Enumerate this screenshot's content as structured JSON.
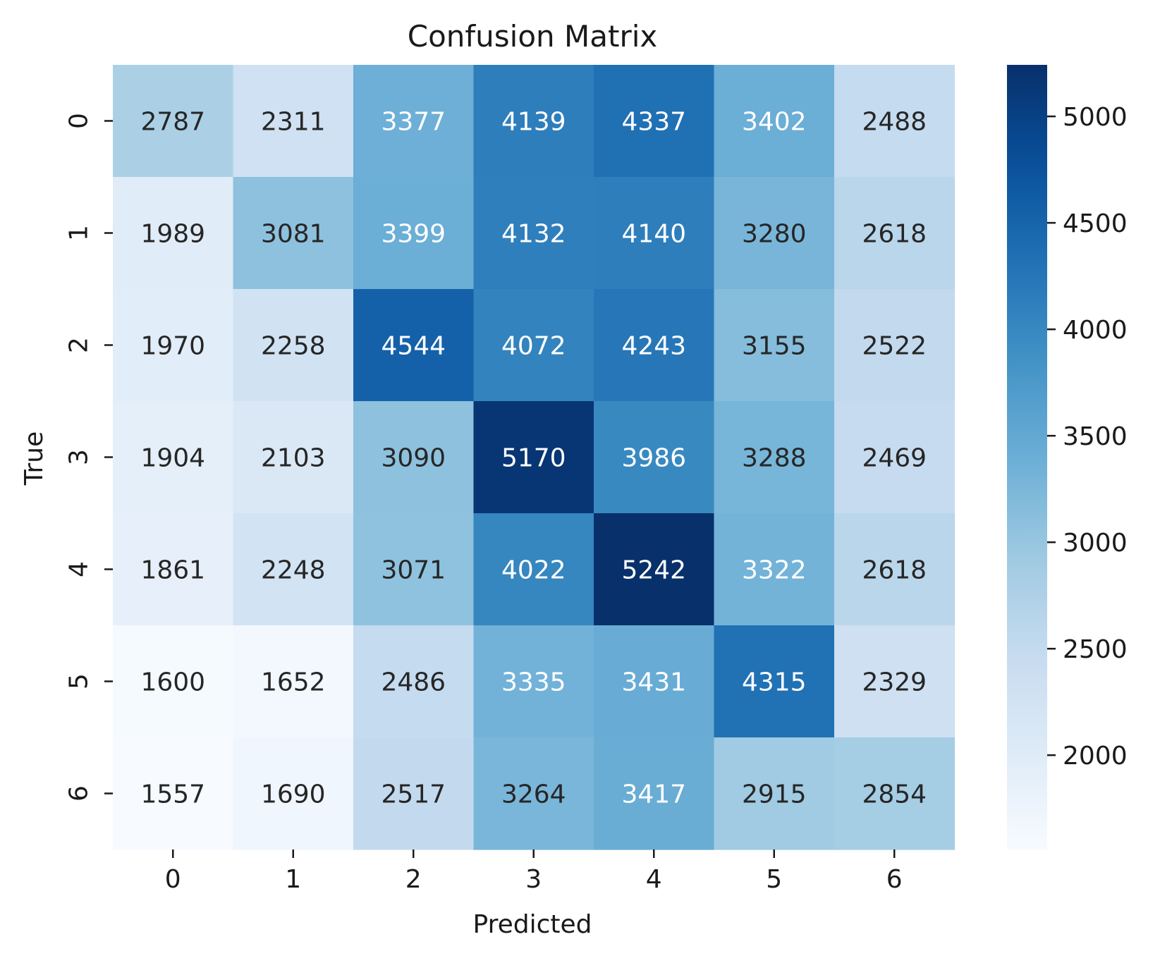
{
  "chart_data": {
    "type": "heatmap",
    "title": "Confusion Matrix",
    "xlabel": "Predicted",
    "ylabel": "True",
    "x_categories": [
      "0",
      "1",
      "2",
      "3",
      "4",
      "5",
      "6"
    ],
    "y_categories": [
      "0",
      "1",
      "2",
      "3",
      "4",
      "5",
      "6"
    ],
    "values": [
      [
        2787,
        2311,
        3377,
        4139,
        4337,
        3402,
        2488
      ],
      [
        1989,
        3081,
        3399,
        4132,
        4140,
        3280,
        2618
      ],
      [
        1970,
        2258,
        4544,
        4072,
        4243,
        3155,
        2522
      ],
      [
        1904,
        2103,
        3090,
        5170,
        3986,
        3288,
        2469
      ],
      [
        1861,
        2248,
        3071,
        4022,
        5242,
        3322,
        2618
      ],
      [
        1600,
        1652,
        2486,
        3335,
        3431,
        4315,
        2329
      ],
      [
        1557,
        1690,
        2517,
        3264,
        3417,
        2915,
        2854
      ]
    ],
    "colormap": "Blues",
    "color_range": [
      1557,
      5242
    ],
    "colorbar_ticks": [
      2000,
      2500,
      3000,
      3500,
      4000,
      4500,
      5000
    ],
    "annotations": true
  }
}
